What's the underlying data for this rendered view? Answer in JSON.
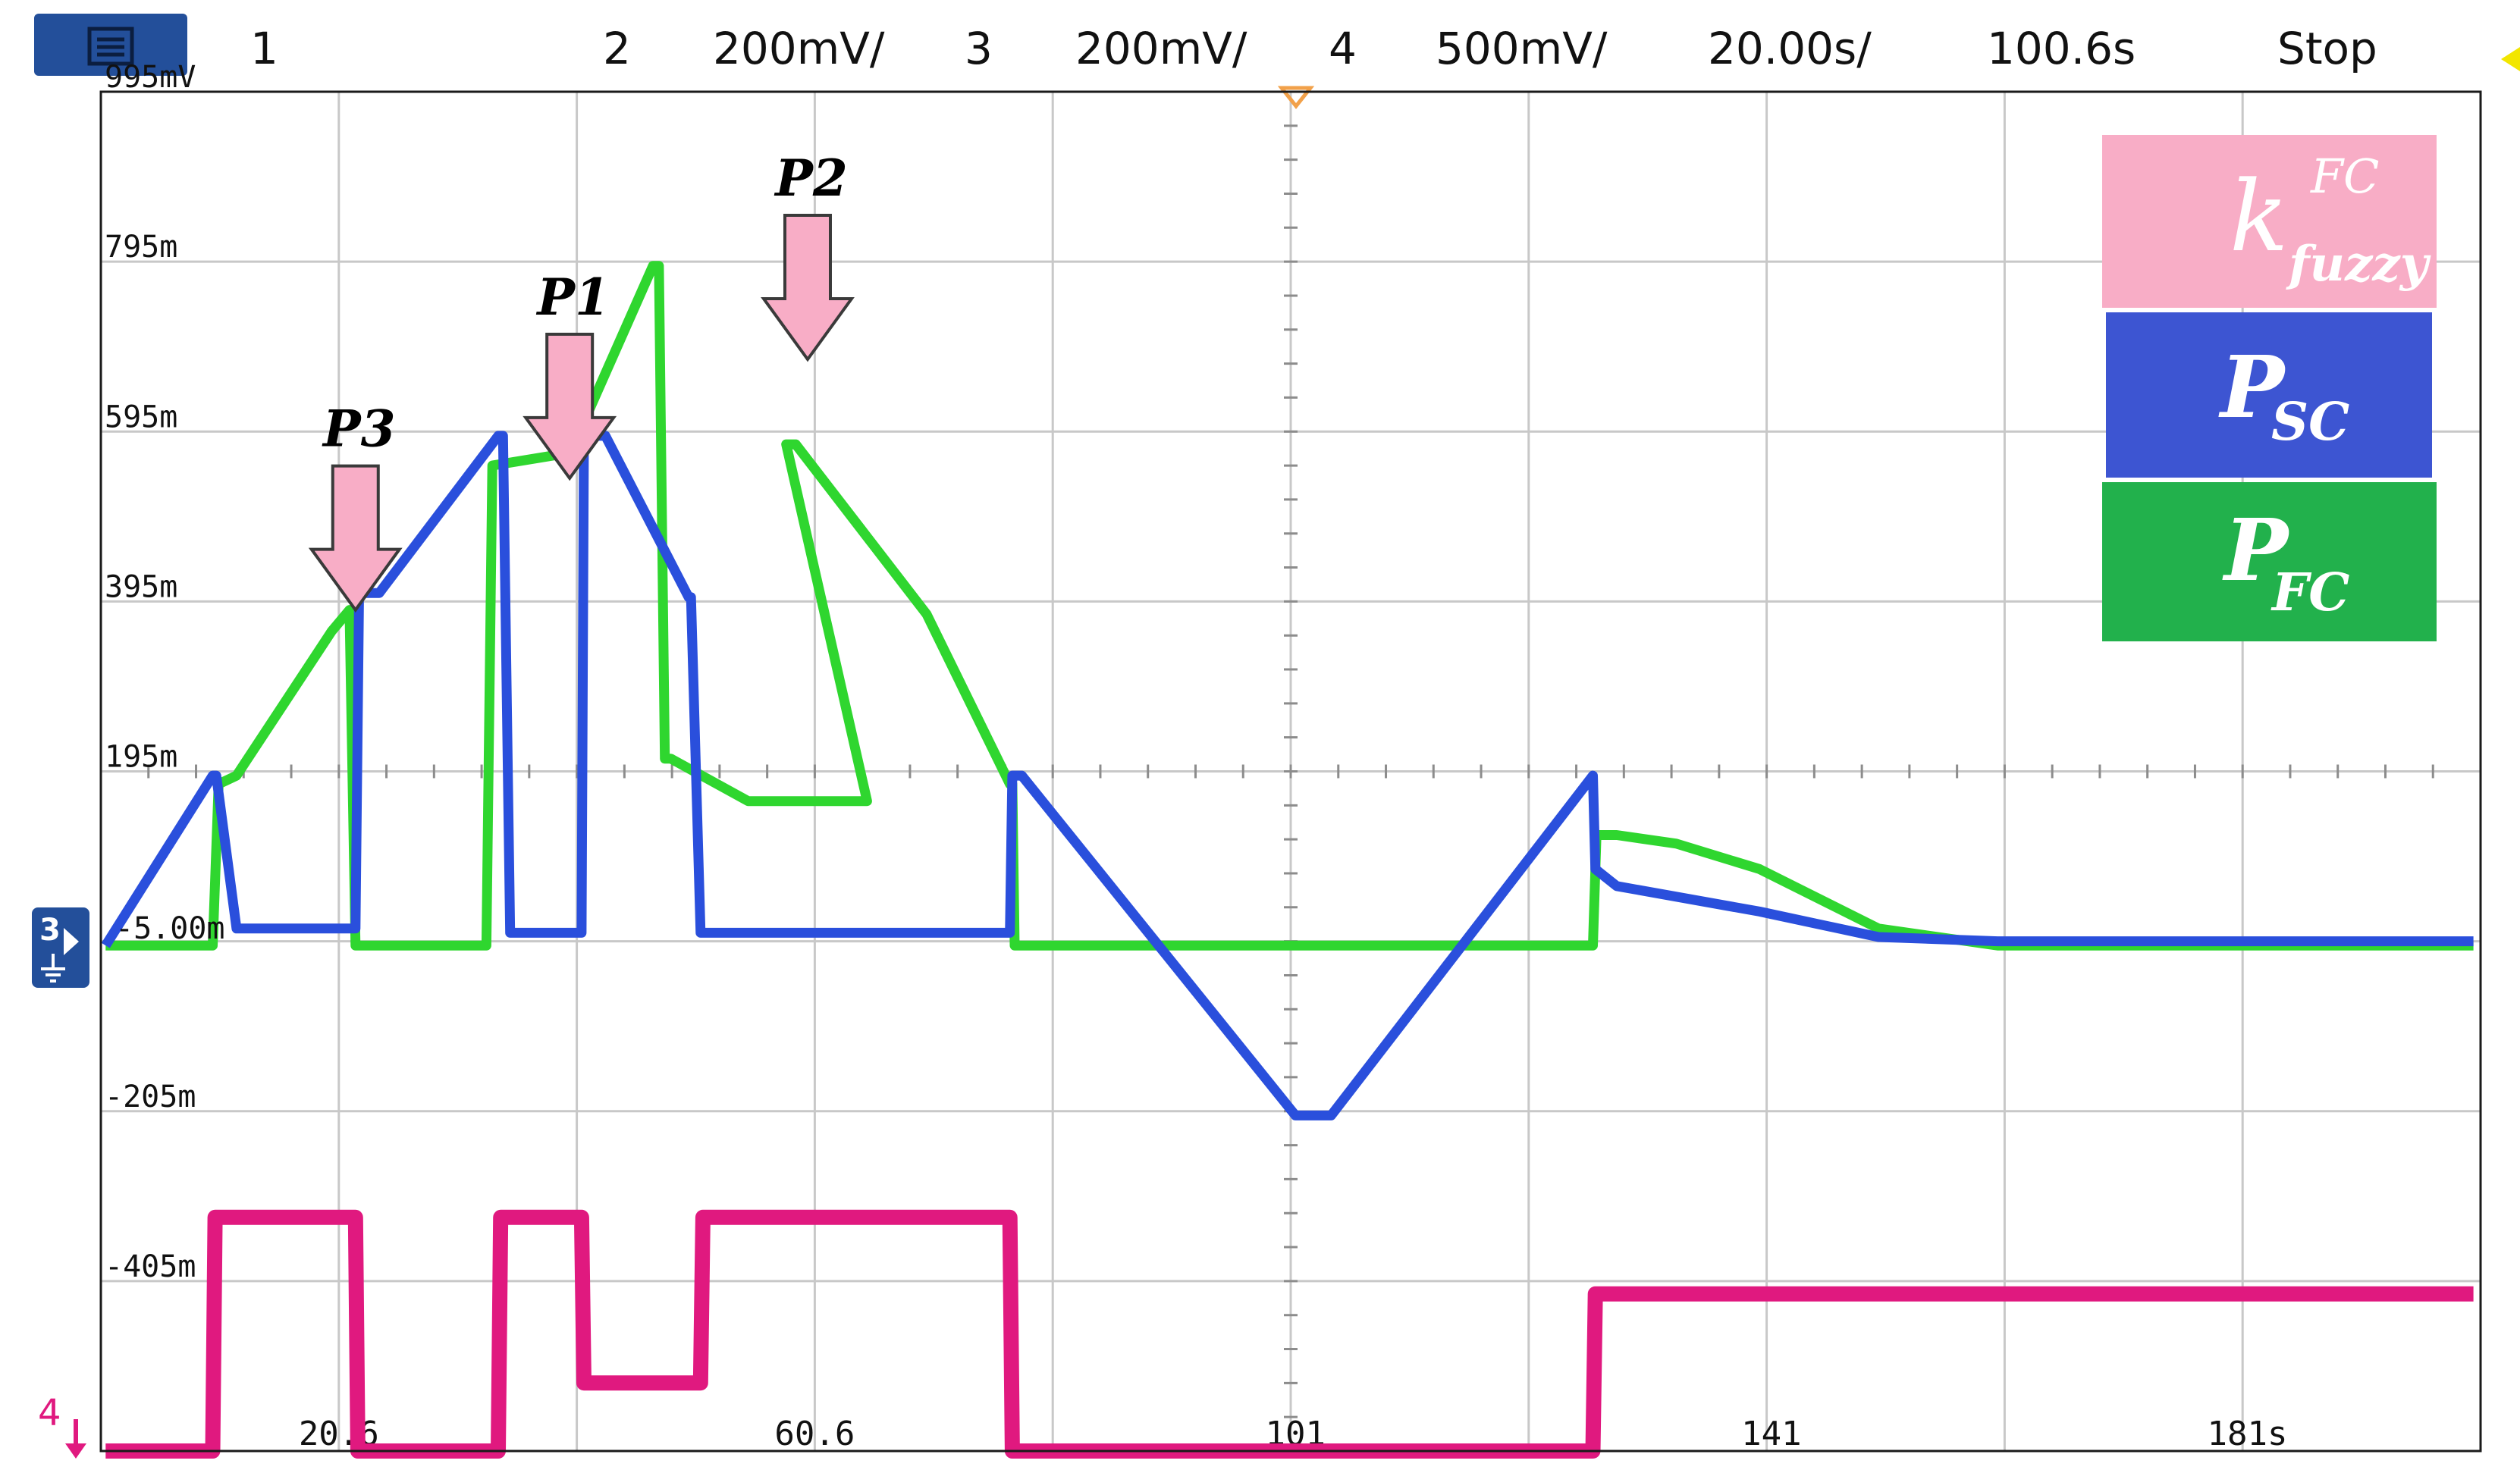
{
  "header": {
    "menu_icon": "menu-icon",
    "channels": [
      {
        "num": "1",
        "scale": "",
        "color": "#f2e600"
      },
      {
        "num": "2",
        "scale": "200mV/",
        "color": "#2fd62f"
      },
      {
        "num": "3",
        "scale": "200mV/",
        "color": "#2a4fdc"
      },
      {
        "num": "4",
        "scale": "500mV/",
        "color": "#e0197f"
      }
    ],
    "timebase": "20.00s/",
    "delay": "100.6s",
    "status": "Stop"
  },
  "markers": {
    "ch3_ground": "3",
    "ch4_ground": "4",
    "ground_value": "-5.00m"
  },
  "annotations": [
    {
      "text": "P3",
      "x": 22
    },
    {
      "text": "P1",
      "x": 40
    },
    {
      "text": "P2",
      "x": 60
    }
  ],
  "legend": [
    {
      "main": "k",
      "sup": "FC",
      "sub": "fuzzy",
      "color": "#f8adc6"
    },
    {
      "main": "P",
      "sub": "SC",
      "color": "#3d55d2"
    },
    {
      "main": "P",
      "sub": "FC",
      "color": "#22b14c"
    }
  ],
  "chart_data": {
    "type": "line",
    "title": "",
    "xlabel": "",
    "ylabel": "",
    "xlim": [
      0.6,
      200.6
    ],
    "ylim": [
      -605,
      995
    ],
    "yticks": [
      {
        "value": 995,
        "label": "995mV"
      },
      {
        "value": 795,
        "label": "795m"
      },
      {
        "value": 595,
        "label": "595m"
      },
      {
        "value": 395,
        "label": "395m"
      },
      {
        "value": 195,
        "label": "195m"
      },
      {
        "value": -205,
        "label": "-205m"
      },
      {
        "value": -405,
        "label": "-405m"
      }
    ],
    "xticks": [
      {
        "value": 20.6,
        "label": "20.6"
      },
      {
        "value": 60.6,
        "label": "60.6"
      },
      {
        "value": 101,
        "label": "101"
      },
      {
        "value": 141,
        "label": "141"
      },
      {
        "value": 181,
        "label": "181s"
      }
    ],
    "grid": true,
    "series": [
      {
        "color": "#2fd62f",
        "x": [
          1,
          10,
          10.5,
          12,
          20,
          21.5,
          22,
          33,
          33.5,
          40,
          41,
          47,
          47.5,
          48,
          48.5,
          55,
          55.1,
          55.3,
          58,
          65,
          58.2,
          58.4,
          59,
          70,
          77,
          77.2,
          77.4,
          100,
          126,
          126.3,
          128,
          133,
          140,
          150,
          160,
          200
        ],
        "y": [
          -10,
          -10,
          180,
          190,
          360,
          385,
          -10,
          -10,
          555,
          570,
          600,
          790,
          790,
          210,
          210,
          160,
          160,
          160,
          160,
          160,
          580,
          580,
          580,
          380,
          180,
          180,
          -10,
          -10,
          -10,
          120,
          120,
          110,
          80,
          10,
          -10,
          -10
        ]
      },
      {
        "color": "#2a4fdc",
        "x": [
          1,
          10,
          10.3,
          12,
          22,
          22.3,
          24,
          34,
          34.4,
          35,
          41,
          41.2,
          41.4,
          43,
          50,
          50.2,
          51,
          58,
          77,
          77.2,
          77.4,
          78,
          101,
          104,
          126,
          126.2,
          128,
          140,
          150,
          160,
          200
        ],
        "y": [
          -10,
          190,
          190,
          10,
          10,
          405,
          405,
          590,
          590,
          5,
          5,
          590,
          590,
          590,
          400,
          400,
          5,
          5,
          5,
          190,
          190,
          190,
          -210,
          -210,
          190,
          80,
          60,
          30,
          0,
          -5,
          -5
        ]
      },
      {
        "color": "#e0197f",
        "x": [
          1,
          10,
          10.2,
          22,
          22.2,
          34,
          34.2,
          41,
          41.2,
          51,
          51.2,
          77,
          77.2,
          126,
          126.2,
          200
        ],
        "y": [
          -605,
          -605,
          -330,
          -330,
          -605,
          -605,
          -330,
          -330,
          -525,
          -525,
          -330,
          -330,
          -605,
          -605,
          -420,
          -420
        ]
      }
    ]
  }
}
